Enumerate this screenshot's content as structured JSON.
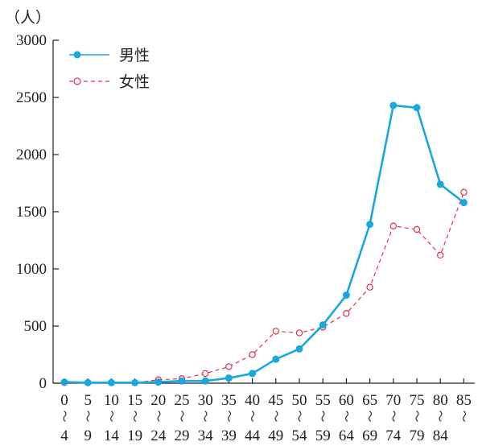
{
  "chart_data": {
    "type": "line",
    "ylabel": "（人）",
    "ylim": [
      0,
      3000
    ],
    "yticks": [
      0,
      500,
      1000,
      1500,
      2000,
      2500,
      3000
    ],
    "grid": false,
    "legend_position": "top-left",
    "categories": [
      {
        "start": "0",
        "sep": "〜",
        "end": "4"
      },
      {
        "start": "5",
        "sep": "〜",
        "end": "9"
      },
      {
        "start": "10",
        "sep": "〜",
        "end": "14"
      },
      {
        "start": "15",
        "sep": "〜",
        "end": "19"
      },
      {
        "start": "20",
        "sep": "〜",
        "end": "24"
      },
      {
        "start": "25",
        "sep": "〜",
        "end": "29"
      },
      {
        "start": "30",
        "sep": "〜",
        "end": "34"
      },
      {
        "start": "35",
        "sep": "〜",
        "end": "39"
      },
      {
        "start": "40",
        "sep": "〜",
        "end": "44"
      },
      {
        "start": "45",
        "sep": "〜",
        "end": "49"
      },
      {
        "start": "50",
        "sep": "〜",
        "end": "54"
      },
      {
        "start": "55",
        "sep": "〜",
        "end": "59"
      },
      {
        "start": "60",
        "sep": "〜",
        "end": "64"
      },
      {
        "start": "65",
        "sep": "〜",
        "end": "69"
      },
      {
        "start": "70",
        "sep": "〜",
        "end": "74"
      },
      {
        "start": "75",
        "sep": "〜",
        "end": "79"
      },
      {
        "start": "80",
        "sep": "〜",
        "end": "84"
      },
      {
        "start": "85",
        "sep": "〜",
        "end": ""
      }
    ],
    "series": [
      {
        "name": "男性",
        "color": "#1aa7de",
        "style": "solid",
        "marker": "filled-circle",
        "values": [
          10,
          5,
          5,
          5,
          10,
          20,
          20,
          45,
          85,
          210,
          300,
          510,
          770,
          1390,
          2430,
          2410,
          1740,
          1580
        ]
      },
      {
        "name": "女性",
        "color": "#e0304e",
        "style": "dashed",
        "marker": "open-circle",
        "values": [
          5,
          5,
          5,
          5,
          30,
          40,
          85,
          145,
          250,
          455,
          440,
          490,
          610,
          840,
          1375,
          1345,
          1120,
          1670
        ]
      }
    ]
  }
}
